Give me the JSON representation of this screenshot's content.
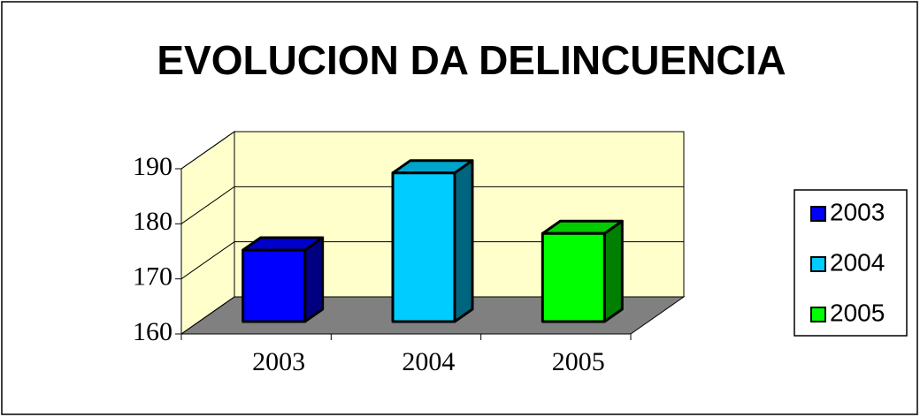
{
  "chart_data": {
    "type": "bar3d",
    "title": "EVOLUCION DA DELINCUENCIA",
    "categories": [
      "2003",
      "2004",
      "2005"
    ],
    "values": [
      173,
      187,
      176
    ],
    "colors": [
      "#0000ff",
      "#00ccff",
      "#00ff00"
    ],
    "ylim": [
      160,
      190
    ],
    "yticks": [
      160,
      170,
      180,
      190
    ],
    "grid": true,
    "legend": "right"
  }
}
